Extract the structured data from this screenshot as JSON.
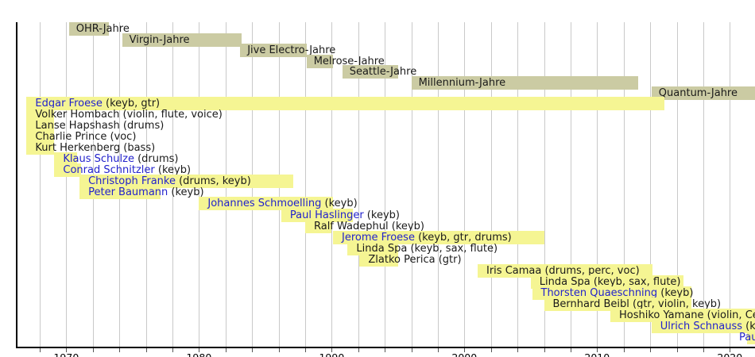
{
  "chart_data": {
    "type": "timeline",
    "title": "",
    "axis": {
      "min_year": 1966.2,
      "max_year": 2021.9,
      "tick_years": [
        1970,
        1980,
        1990,
        2000,
        2010,
        2020
      ],
      "gridline_start_year": 1968,
      "gridline_end_year": 2020,
      "gridline_step_years": 2,
      "grid": "on",
      "legend": "none"
    },
    "colors": {
      "era_bar": "#cbcba3",
      "member_bar": "#f5f593",
      "link_text": "#2222cc",
      "plain_text": "#1a1a1a",
      "gridline": "#c9c9c9",
      "axis": "#000000"
    },
    "eras": [
      {
        "label": "OHR-Jahre",
        "start": 1970.2,
        "end": 1973.2
      },
      {
        "label": "Virgin-Jahre",
        "start": 1974.2,
        "end": 1983.2
      },
      {
        "label": "Jive Electro-Jahre",
        "start": 1983.1,
        "end": 1988.1
      },
      {
        "label": "Melrose-Jahre",
        "start": 1988.1,
        "end": 1990.1
      },
      {
        "label": "Seattle-Jahre",
        "start": 1990.8,
        "end": 1995.0
      },
      {
        "label": "Millennium-Jahre",
        "start": 1996.0,
        "end": 2013.1
      },
      {
        "label": "Quantum-Jahre",
        "start": 2014.1,
        "end": 2022.0
      }
    ],
    "members": [
      {
        "name": "Edgar Froese",
        "instruments": "(keyb, gtr)",
        "link": true,
        "start": 1967.0,
        "end": 2015.1
      },
      {
        "name": "Volker Hombach",
        "instruments": "(violin, flute, voice)",
        "link": false,
        "start": 1967.0,
        "end": 1969.1
      },
      {
        "name": "Lanse Hapshash",
        "instruments": "(drums)",
        "link": false,
        "start": 1967.0,
        "end": 1969.1
      },
      {
        "name": "Charlie Prince",
        "instruments": "(voc)",
        "link": false,
        "start": 1967.0,
        "end": 1969.1
      },
      {
        "name": "Kurt Herkenberg",
        "instruments": "(bass)",
        "link": false,
        "start": 1967.0,
        "end": 1969.1
      },
      {
        "name": "Klaus Schulze",
        "instruments": "(drums)",
        "link": true,
        "start": 1969.1,
        "end": 1970.8
      },
      {
        "name": "Conrad Schnitzler",
        "instruments": "(keyb)",
        "link": true,
        "start": 1969.1,
        "end": 1971.1
      },
      {
        "name": "Christoph Franke",
        "instruments": "(drums, keyb)",
        "link": true,
        "start": 1971.0,
        "end": 1987.1
      },
      {
        "name": "Peter Baumann",
        "instruments": "(keyb)",
        "link": true,
        "start": 1971.0,
        "end": 1977.1
      },
      {
        "name": "Johannes Schmoelling",
        "instruments": "(keyb)",
        "link": true,
        "start": 1980.0,
        "end": 1990.1
      },
      {
        "name": "Paul Haslinger",
        "instruments": "(keyb)",
        "link": true,
        "start": 1986.2,
        "end": 1991.6
      },
      {
        "name": "Ralf Wadephul",
        "instruments": "(keyb)",
        "link": false,
        "start": 1988.0,
        "end": 1990.0
      },
      {
        "name": "Jerome Froese",
        "instruments": "(keyb, gtr, drums)",
        "link": true,
        "start": 1990.1,
        "end": 2006.0
      },
      {
        "name": "Linda Spa",
        "instruments": "(keyb, sax, flute)",
        "link": false,
        "start": 1991.2,
        "end": 1995.0
      },
      {
        "name": "Zlatko Perica",
        "instruments": "(gtr)",
        "link": false,
        "start": 1992.1,
        "end": 1995.0
      },
      {
        "name": "Iris Camaa",
        "instruments": "(drums, perc, voc)",
        "link": false,
        "start": 2001.0,
        "end": 2014.2
      },
      {
        "name": "Linda Spa",
        "instruments": "(keyb, sax, flute)",
        "link": false,
        "start": 2005.0,
        "end": 2016.5
      },
      {
        "name": "Thorsten Quaeschning",
        "instruments": "(keyb)",
        "link": true,
        "start": 2005.1,
        "end": 2017.1
      },
      {
        "name": "Bernhard Beibl",
        "instruments": "(gtr, violin, keyb)",
        "link": false,
        "start": 2006.0,
        "end": 2017.1
      },
      {
        "name": "Hoshiko Yamane",
        "instruments": "(violin, Cello",
        "link": false,
        "start": 2011.0,
        "end": 2022.0
      },
      {
        "name": "Ulrich Schnauss",
        "instruments": "(key",
        "link": true,
        "start": 2014.1,
        "end": 2022.0
      },
      {
        "name": "Pau",
        "instruments": "",
        "link": true,
        "start": 2021.3,
        "end": 2022.0
      }
    ]
  }
}
